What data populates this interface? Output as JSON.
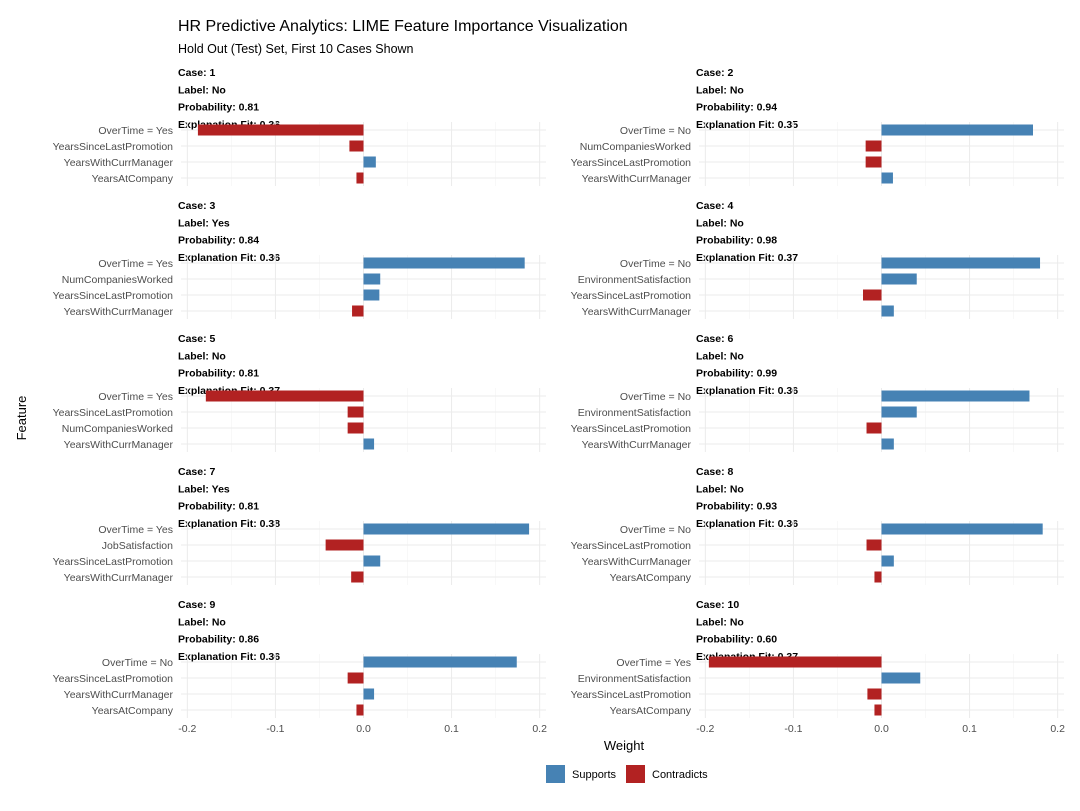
{
  "chart_data": {
    "type": "bar",
    "orientation": "horizontal",
    "title": "HR Predictive Analytics: LIME Feature Importance Visualization",
    "subtitle": "Hold Out (Test) Set, First 10 Cases Shown",
    "xlabel": "Weight",
    "ylabel": "Feature",
    "xlim": [
      -0.2,
      0.2
    ],
    "xticks": [
      "-0.2",
      "-0.1",
      "0.0",
      "0.1",
      "0.2"
    ],
    "xtick_values": [
      -0.2,
      -0.1,
      0.0,
      0.1,
      0.2
    ],
    "grid": true,
    "facet_layout": "5 rows x 2 columns",
    "legend": {
      "position": "bottom",
      "entries": [
        {
          "label": "Supports",
          "color": "#4682B4"
        },
        {
          "label": "Contradicts",
          "color": "#B22222"
        }
      ]
    },
    "panels": [
      {
        "case": "Case: 1",
        "label": "Label: No",
        "probability": "Probability: 0.81",
        "fit": "Explanation Fit: 0.36",
        "features": [
          {
            "name": "OverTime = Yes",
            "weight": -0.188
          },
          {
            "name": "YearsSinceLastPromotion",
            "weight": -0.016
          },
          {
            "name": "YearsWithCurrManager",
            "weight": 0.014
          },
          {
            "name": "YearsAtCompany",
            "weight": -0.008
          }
        ]
      },
      {
        "case": "Case: 2",
        "label": "Label: No",
        "probability": "Probability: 0.94",
        "fit": "Explanation Fit: 0.35",
        "features": [
          {
            "name": "OverTime = No",
            "weight": 0.172
          },
          {
            "name": "NumCompaniesWorked",
            "weight": -0.018
          },
          {
            "name": "YearsSinceLastPromotion",
            "weight": -0.018
          },
          {
            "name": "YearsWithCurrManager",
            "weight": 0.013
          }
        ]
      },
      {
        "case": "Case: 3",
        "label": "Label: Yes",
        "probability": "Probability: 0.84",
        "fit": "Explanation Fit: 0.36",
        "features": [
          {
            "name": "OverTime = Yes",
            "weight": 0.183
          },
          {
            "name": "NumCompaniesWorked",
            "weight": 0.019
          },
          {
            "name": "YearsSinceLastPromotion",
            "weight": 0.018
          },
          {
            "name": "YearsWithCurrManager",
            "weight": -0.013
          }
        ]
      },
      {
        "case": "Case: 4",
        "label": "Label: No",
        "probability": "Probability: 0.98",
        "fit": "Explanation Fit: 0.37",
        "features": [
          {
            "name": "OverTime = No",
            "weight": 0.18
          },
          {
            "name": "EnvironmentSatisfaction",
            "weight": 0.04
          },
          {
            "name": "YearsSinceLastPromotion",
            "weight": -0.021
          },
          {
            "name": "YearsWithCurrManager",
            "weight": 0.014
          }
        ]
      },
      {
        "case": "Case: 5",
        "label": "Label: No",
        "probability": "Probability: 0.81",
        "fit": "Explanation Fit: 0.37",
        "features": [
          {
            "name": "OverTime = Yes",
            "weight": -0.179
          },
          {
            "name": "YearsSinceLastPromotion",
            "weight": -0.018
          },
          {
            "name": "NumCompaniesWorked",
            "weight": -0.018
          },
          {
            "name": "YearsWithCurrManager",
            "weight": 0.012
          }
        ]
      },
      {
        "case": "Case: 6",
        "label": "Label: No",
        "probability": "Probability: 0.99",
        "fit": "Explanation Fit: 0.36",
        "features": [
          {
            "name": "OverTime = No",
            "weight": 0.168
          },
          {
            "name": "EnvironmentSatisfaction",
            "weight": 0.04
          },
          {
            "name": "YearsSinceLastPromotion",
            "weight": -0.017
          },
          {
            "name": "YearsWithCurrManager",
            "weight": 0.014
          }
        ]
      },
      {
        "case": "Case: 7",
        "label": "Label: Yes",
        "probability": "Probability: 0.81",
        "fit": "Explanation Fit: 0.38",
        "features": [
          {
            "name": "OverTime = Yes",
            "weight": 0.188
          },
          {
            "name": "JobSatisfaction",
            "weight": -0.043
          },
          {
            "name": "YearsSinceLastPromotion",
            "weight": 0.019
          },
          {
            "name": "YearsWithCurrManager",
            "weight": -0.014
          }
        ]
      },
      {
        "case": "Case: 8",
        "label": "Label: No",
        "probability": "Probability: 0.93",
        "fit": "Explanation Fit: 0.36",
        "features": [
          {
            "name": "OverTime = No",
            "weight": 0.183
          },
          {
            "name": "YearsSinceLastPromotion",
            "weight": -0.017
          },
          {
            "name": "YearsWithCurrManager",
            "weight": 0.014
          },
          {
            "name": "YearsAtCompany",
            "weight": -0.008
          }
        ]
      },
      {
        "case": "Case: 9",
        "label": "Label: No",
        "probability": "Probability: 0.86",
        "fit": "Explanation Fit: 0.36",
        "features": [
          {
            "name": "OverTime = No",
            "weight": 0.174
          },
          {
            "name": "YearsSinceLastPromotion",
            "weight": -0.018
          },
          {
            "name": "YearsWithCurrManager",
            "weight": 0.012
          },
          {
            "name": "YearsAtCompany",
            "weight": -0.008
          }
        ]
      },
      {
        "case": "Case: 10",
        "label": "Label: No",
        "probability": "Probability: 0.60",
        "fit": "Explanation Fit: 0.37",
        "features": [
          {
            "name": "OverTime = Yes",
            "weight": -0.196
          },
          {
            "name": "EnvironmentSatisfaction",
            "weight": 0.044
          },
          {
            "name": "YearsSinceLastPromotion",
            "weight": -0.016
          },
          {
            "name": "YearsAtCompany",
            "weight": -0.008
          }
        ]
      }
    ]
  }
}
